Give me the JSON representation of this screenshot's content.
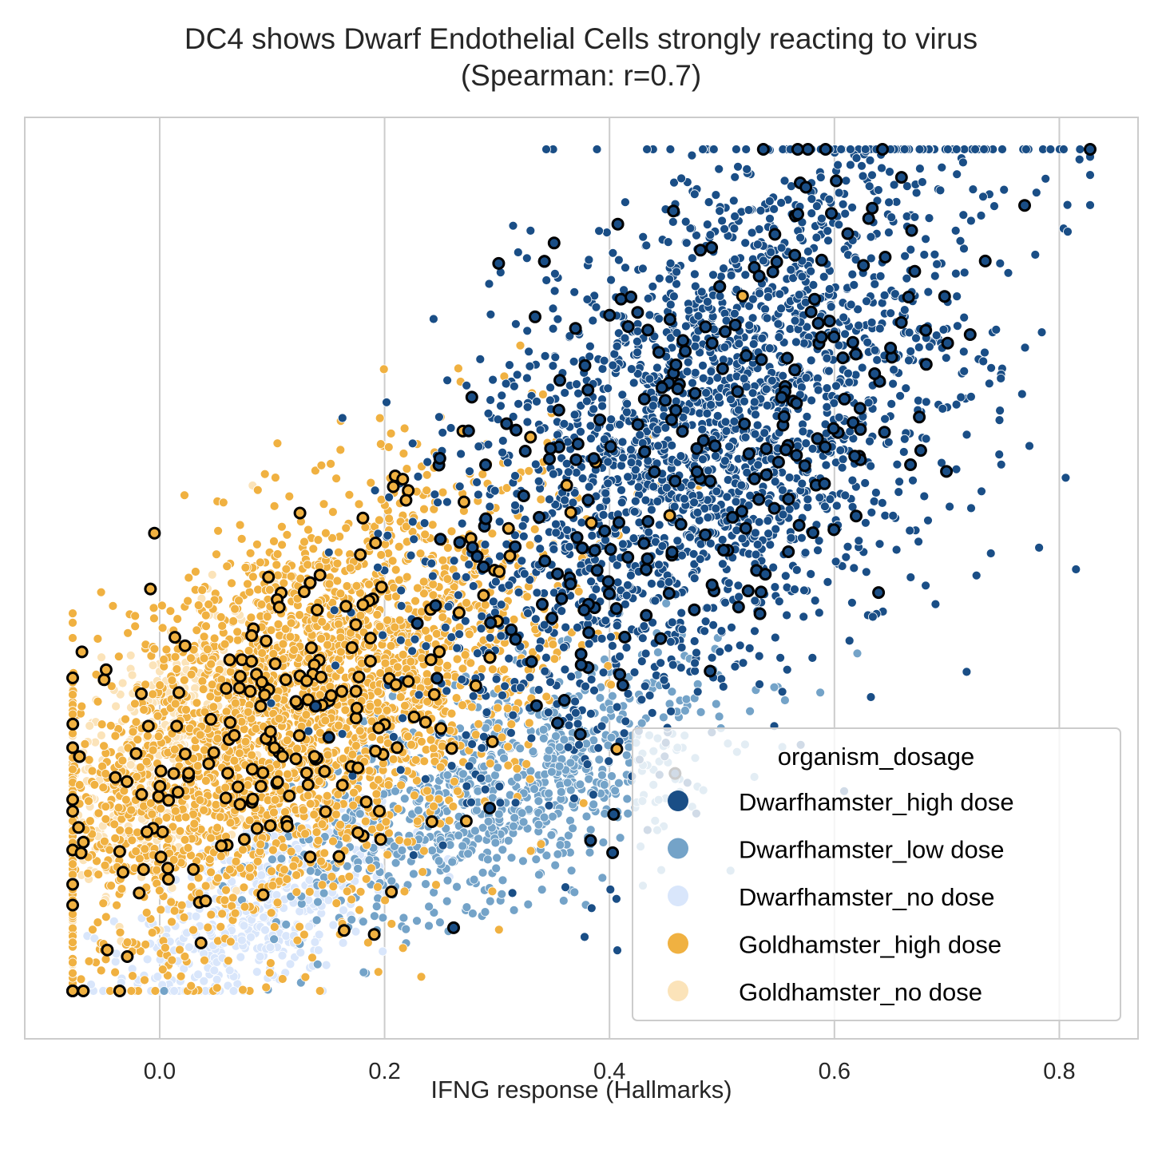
{
  "chart_data": {
    "type": "scatter",
    "title": "DC4 shows Dwarf Endothelial Cells strongly reacting to virus",
    "subtitle": "(Spearman: r=0.7)",
    "xlabel": "IFNG response (Hallmarks)",
    "ylabel": "",
    "xlim": [
      -0.12,
      0.87
    ],
    "ylim": [
      0,
      1
    ],
    "xticks": [
      "0.0",
      "0.2",
      "0.4",
      "0.6",
      "0.8"
    ],
    "xtick_values": [
      0.0,
      0.2,
      0.4,
      0.6,
      0.8
    ],
    "grid": "vertical",
    "legend": {
      "title": "organism_dosage",
      "placement": "lower right"
    },
    "series": [
      {
        "name": "Dwarfhamster_high dose",
        "color": "#1a4e86",
        "count": 2600,
        "cluster": {
          "x_mean": 0.49,
          "x_sd": 0.12,
          "y_mean": 0.66,
          "y_sd": 0.17
        }
      },
      {
        "name": "Dwarfhamster_low dose",
        "color": "#74a3c8",
        "count": 900,
        "cluster": {
          "x_mean": 0.3,
          "x_sd": 0.1,
          "y_mean": 0.27,
          "y_sd": 0.07
        }
      },
      {
        "name": "Dwarfhamster_no dose",
        "color": "#d9e6fb",
        "count": 500,
        "cluster": {
          "x_mean": 0.09,
          "x_sd": 0.06,
          "y_mean": 0.14,
          "y_sd": 0.06
        }
      },
      {
        "name": "Goldhamster_high dose",
        "color": "#f0b141",
        "count": 3000,
        "cluster": {
          "x_mean": 0.12,
          "x_sd": 0.11,
          "y_mean": 0.35,
          "y_sd": 0.12
        }
      },
      {
        "name": "Goldhamster_no dose",
        "color": "#fbe3b9",
        "count": 500,
        "cluster": {
          "x_mean": 0.0,
          "x_sd": 0.05,
          "y_mean": 0.3,
          "y_sd": 0.08
        }
      }
    ],
    "highlighted": {
      "style": "black outline",
      "high_dose_dwarf": 260,
      "high_dose_gold": 220
    }
  }
}
